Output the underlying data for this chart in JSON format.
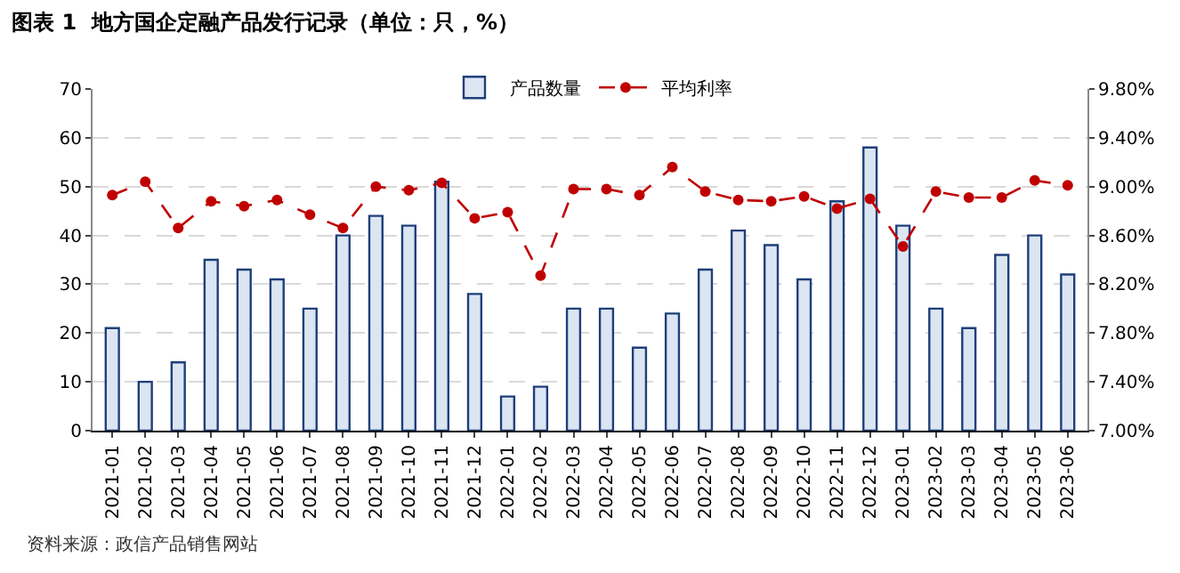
{
  "chart_data": {
    "type": "bar",
    "title": "图表 1  地方国企定融产品发行记录（单位：只，%）",
    "categories": [
      "2021-01",
      "2021-02",
      "2021-03",
      "2021-04",
      "2021-05",
      "2021-06",
      "2021-07",
      "2021-08",
      "2021-09",
      "2021-10",
      "2021-11",
      "2021-12",
      "2022-01",
      "2022-02",
      "2022-03",
      "2022-04",
      "2022-05",
      "2022-06",
      "2022-07",
      "2022-08",
      "2022-09",
      "2022-10",
      "2022-11",
      "2022-12",
      "2023-01",
      "2023-02",
      "2023-03",
      "2023-04",
      "2023-05",
      "2023-06"
    ],
    "series": [
      {
        "name": "产品数量",
        "color": "#dce6f2",
        "values": [
          21,
          10,
          14,
          35,
          33,
          31,
          25,
          40,
          44,
          42,
          51,
          28,
          7,
          9,
          25,
          25,
          17,
          24,
          33,
          41,
          38,
          31,
          47,
          58,
          42,
          25,
          21,
          36,
          40,
          32
        ]
      },
      {
        "name": "平均利率",
        "type": "line",
        "axis": "y2",
        "color": "#c00000",
        "marker": "circle",
        "line_style": "dashed",
        "values": [
          8.93,
          9.04,
          8.66,
          8.88,
          8.84,
          8.89,
          8.77,
          8.66,
          9.0,
          8.97,
          9.03,
          8.74,
          8.79,
          8.27,
          8.98,
          8.98,
          8.93,
          9.16,
          8.96,
          8.89,
          8.88,
          8.92,
          8.82,
          8.9,
          8.51,
          8.96,
          8.91,
          8.91,
          9.05,
          9.01
        ]
      }
    ],
    "ylim": [
      0,
      70
    ],
    "yticks": [
      0,
      10,
      20,
      30,
      40,
      50,
      60,
      70
    ],
    "y2lim": [
      7.0,
      9.8
    ],
    "y2ticks": [
      {
        "value": 7.0,
        "label": "7.00%"
      },
      {
        "value": 7.4,
        "label": "7.40%"
      },
      {
        "value": 7.8,
        "label": "7.80%"
      },
      {
        "value": 8.2,
        "label": "8.20%"
      },
      {
        "value": 8.6,
        "label": "8.60%"
      },
      {
        "value": 9.0,
        "label": "9.00%"
      },
      {
        "value": 9.4,
        "label": "9.40%"
      },
      {
        "value": 9.8,
        "label": "9.80%"
      }
    ],
    "grid": "y",
    "legend": "top",
    "annotations": [
      "资料来源：政信产品销售网站"
    ]
  }
}
